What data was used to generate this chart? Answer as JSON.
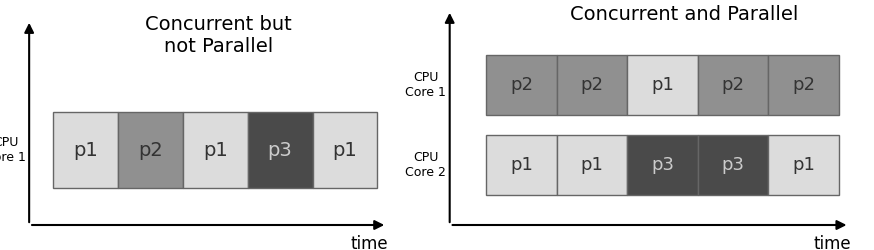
{
  "title_left": "Concurrent but\nnot Parallel",
  "title_right": "Concurrent and Parallel",
  "left_bars": [
    {
      "label": "p1",
      "color": "#dcdcdc"
    },
    {
      "label": "p2",
      "color": "#909090"
    },
    {
      "label": "p1",
      "color": "#dcdcdc"
    },
    {
      "label": "p3",
      "color": "#4a4a4a"
    },
    {
      "label": "p1",
      "color": "#dcdcdc"
    }
  ],
  "right_core1_bars": [
    {
      "label": "p2",
      "color": "#909090"
    },
    {
      "label": "p2",
      "color": "#909090"
    },
    {
      "label": "p1",
      "color": "#dcdcdc"
    },
    {
      "label": "p2",
      "color": "#909090"
    },
    {
      "label": "p2",
      "color": "#909090"
    }
  ],
  "right_core2_bars": [
    {
      "label": "p1",
      "color": "#dcdcdc"
    },
    {
      "label": "p1",
      "color": "#dcdcdc"
    },
    {
      "label": "p3",
      "color": "#4a4a4a"
    },
    {
      "label": "p3",
      "color": "#4a4a4a"
    },
    {
      "label": "p1",
      "color": "#dcdcdc"
    }
  ],
  "title_color": "#000000",
  "text_color": "#000000",
  "bg_color": "#ffffff",
  "label_fontsize": 14,
  "title_fontsize": 14,
  "ylabel_fontsize": 9
}
